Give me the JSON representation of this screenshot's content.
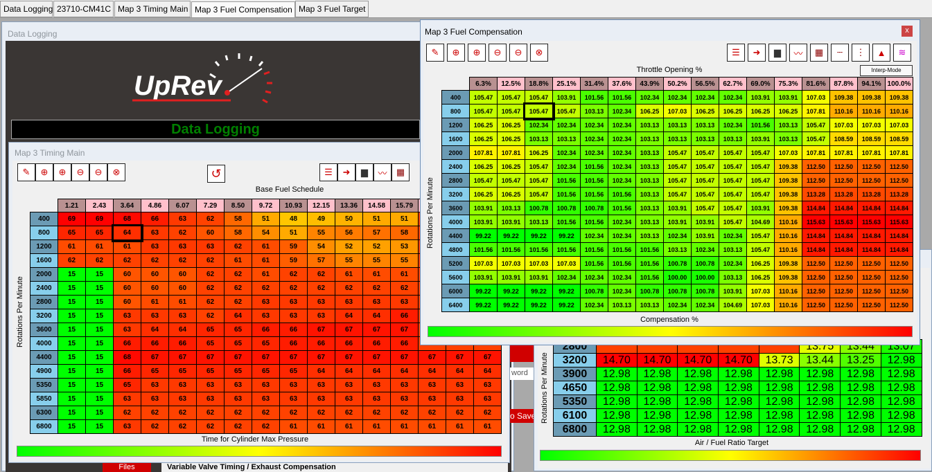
{
  "tabs": [
    "Data Logging",
    "23710-CM41C",
    "Map 3 Timing Main",
    "Map 3 Fuel Compensation",
    "Map 3 Fuel Target"
  ],
  "active_tab": "Map 3 Fuel Compensation",
  "data_logging": {
    "title": "Data Logging",
    "logo": "UpRev",
    "banner": "Data Logging",
    "password_fragment": "word",
    "save_fragment": "o Save",
    "files_fragment": "Files",
    "status_fragment": "Variable Valve Timing / Exhaust Compensation"
  },
  "colors": {
    "low": "#00ff00",
    "mid": "#ffff00",
    "high": "#ff0000",
    "header_a": "#b99191",
    "header_b": "#ffc0cb",
    "row_a": "#6b9bb4",
    "row_b": "#87ceeb",
    "banner_text": "#008000"
  },
  "timing": {
    "title": "Map 3 Timing Main",
    "col_axis": "Base Fuel Schedule",
    "row_axis": "Rotations Per Minute",
    "footer": "Time for Cylinder Max Pressure",
    "range": [
      15,
      69
    ],
    "cols": [
      "1.21",
      "2.43",
      "3.64",
      "4.86",
      "6.07",
      "7.29",
      "8.50",
      "9.72",
      "10.93",
      "12.15",
      "13.36",
      "14.58",
      "15.79",
      "",
      "",
      ""
    ],
    "rows": [
      "400",
      "800",
      "1200",
      "1600",
      "2000",
      "2400",
      "2800",
      "3200",
      "3600",
      "4000",
      "4400",
      "4900",
      "5350",
      "5850",
      "6300",
      "6800"
    ],
    "values": [
      [
        69,
        69,
        68,
        66,
        63,
        62,
        58,
        51,
        48,
        49,
        50,
        51,
        51,
        null,
        null,
        null
      ],
      [
        65,
        65,
        64,
        63,
        62,
        60,
        58,
        54,
        51,
        55,
        56,
        57,
        58,
        null,
        null,
        null
      ],
      [
        61,
        61,
        61,
        63,
        63,
        63,
        62,
        61,
        59,
        54,
        52,
        52,
        53,
        null,
        null,
        null
      ],
      [
        62,
        62,
        62,
        62,
        62,
        62,
        61,
        61,
        59,
        57,
        55,
        55,
        55,
        null,
        null,
        null
      ],
      [
        15,
        15,
        60,
        60,
        60,
        62,
        62,
        61,
        62,
        62,
        61,
        61,
        61,
        null,
        null,
        null
      ],
      [
        15,
        15,
        60,
        60,
        60,
        62,
        62,
        62,
        62,
        62,
        62,
        62,
        62,
        null,
        null,
        null
      ],
      [
        15,
        15,
        60,
        61,
        61,
        62,
        62,
        63,
        63,
        63,
        63,
        63,
        63,
        null,
        null,
        null
      ],
      [
        15,
        15,
        63,
        63,
        63,
        62,
        64,
        63,
        63,
        63,
        64,
        64,
        66,
        null,
        null,
        null
      ],
      [
        15,
        15,
        63,
        64,
        64,
        65,
        65,
        66,
        66,
        67,
        67,
        67,
        67,
        null,
        null,
        null
      ],
      [
        15,
        15,
        66,
        66,
        66,
        65,
        65,
        65,
        66,
        66,
        66,
        66,
        66,
        null,
        null,
        null
      ],
      [
        15,
        15,
        68,
        67,
        67,
        67,
        67,
        67,
        67,
        67,
        67,
        67,
        67,
        67,
        67,
        67
      ],
      [
        15,
        15,
        66,
        65,
        65,
        65,
        65,
        65,
        65,
        64,
        64,
        64,
        64,
        64,
        64,
        64
      ],
      [
        15,
        15,
        65,
        63,
        63,
        63,
        63,
        63,
        63,
        63,
        63,
        63,
        63,
        63,
        63,
        63
      ],
      [
        15,
        15,
        63,
        63,
        63,
        63,
        63,
        63,
        63,
        63,
        63,
        63,
        63,
        63,
        63,
        63
      ],
      [
        15,
        15,
        62,
        62,
        62,
        62,
        62,
        62,
        62,
        62,
        62,
        62,
        62,
        62,
        62,
        62
      ],
      [
        15,
        15,
        63,
        62,
        62,
        62,
        62,
        62,
        61,
        61,
        61,
        61,
        61,
        61,
        61,
        61
      ]
    ]
  },
  "fuel_comp": {
    "title": "Map 3 Fuel Compensation",
    "close": "x",
    "col_axis": "Throttle Opening %",
    "row_axis": "Rotations Per Minute",
    "footer": "Compensation %",
    "interp_mode": "Interp-Mode",
    "range": [
      99.22,
      115.63
    ],
    "cols": [
      "6.3%",
      "12.5%",
      "18.8%",
      "25.1%",
      "31.4%",
      "37.6%",
      "43.9%",
      "50.2%",
      "56.5%",
      "62.7%",
      "69.0%",
      "75.3%",
      "81.6%",
      "87.8%",
      "94.1%",
      "100.0%"
    ],
    "rows": [
      "400",
      "800",
      "1200",
      "1600",
      "2000",
      "2400",
      "2800",
      "3200",
      "3600",
      "4000",
      "4400",
      "4800",
      "5200",
      "5600",
      "6000",
      "6400"
    ],
    "values": [
      [
        "105.47",
        "105.47",
        "105.47",
        "103.91",
        "101.56",
        "101.56",
        "102.34",
        "102.34",
        "102.34",
        "102.34",
        "103.91",
        "103.91",
        "107.03",
        "109.38",
        "109.38",
        "109.38"
      ],
      [
        "105.47",
        "105.47",
        "105.47",
        "105.47",
        "103.13",
        "102.34",
        "106.25",
        "107.03",
        "106.25",
        "106.25",
        "106.25",
        "106.25",
        "107.81",
        "110.16",
        "110.16",
        "110.16"
      ],
      [
        "106.25",
        "106.25",
        "102.34",
        "102.34",
        "102.34",
        "102.34",
        "103.13",
        "103.13",
        "103.13",
        "102.34",
        "101.56",
        "103.13",
        "105.47",
        "107.03",
        "107.03",
        "107.03"
      ],
      [
        "106.25",
        "106.25",
        "103.13",
        "103.13",
        "102.34",
        "102.34",
        "103.13",
        "103.13",
        "103.13",
        "103.13",
        "103.91",
        "103.13",
        "105.47",
        "108.59",
        "108.59",
        "108.59"
      ],
      [
        "107.81",
        "107.81",
        "106.25",
        "102.34",
        "102.34",
        "102.34",
        "103.13",
        "105.47",
        "105.47",
        "105.47",
        "105.47",
        "107.03",
        "107.81",
        "107.81",
        "107.81",
        "107.81"
      ],
      [
        "106.25",
        "106.25",
        "105.47",
        "102.34",
        "101.56",
        "102.34",
        "103.13",
        "105.47",
        "105.47",
        "105.47",
        "105.47",
        "109.38",
        "112.50",
        "112.50",
        "112.50",
        "112.50"
      ],
      [
        "105.47",
        "105.47",
        "105.47",
        "101.56",
        "101.56",
        "102.34",
        "103.13",
        "105.47",
        "105.47",
        "105.47",
        "105.47",
        "109.38",
        "112.50",
        "112.50",
        "112.50",
        "112.50"
      ],
      [
        "106.25",
        "106.25",
        "105.47",
        "101.56",
        "101.56",
        "101.56",
        "103.13",
        "105.47",
        "105.47",
        "105.47",
        "105.47",
        "109.38",
        "113.28",
        "113.28",
        "113.28",
        "113.28"
      ],
      [
        "103.91",
        "103.13",
        "100.78",
        "100.78",
        "100.78",
        "101.56",
        "103.13",
        "103.91",
        "105.47",
        "105.47",
        "103.91",
        "109.38",
        "114.84",
        "114.84",
        "114.84",
        "114.84"
      ],
      [
        "103.91",
        "103.91",
        "103.13",
        "101.56",
        "101.56",
        "102.34",
        "103.13",
        "103.91",
        "103.91",
        "105.47",
        "104.69",
        "110.16",
        "115.63",
        "115.63",
        "115.63",
        "115.63"
      ],
      [
        "99.22",
        "99.22",
        "99.22",
        "99.22",
        "102.34",
        "102.34",
        "103.13",
        "102.34",
        "103.91",
        "102.34",
        "105.47",
        "110.16",
        "114.84",
        "114.84",
        "114.84",
        "114.84"
      ],
      [
        "101.56",
        "101.56",
        "101.56",
        "101.56",
        "101.56",
        "101.56",
        "101.56",
        "103.13",
        "102.34",
        "103.13",
        "105.47",
        "110.16",
        "114.84",
        "114.84",
        "114.84",
        "114.84"
      ],
      [
        "107.03",
        "107.03",
        "107.03",
        "107.03",
        "101.56",
        "101.56",
        "101.56",
        "100.78",
        "100.78",
        "102.34",
        "106.25",
        "109.38",
        "112.50",
        "112.50",
        "112.50",
        "112.50"
      ],
      [
        "103.91",
        "103.91",
        "103.91",
        "102.34",
        "102.34",
        "102.34",
        "101.56",
        "100.00",
        "100.00",
        "103.13",
        "106.25",
        "109.38",
        "112.50",
        "112.50",
        "112.50",
        "112.50"
      ],
      [
        "99.22",
        "99.22",
        "99.22",
        "99.22",
        "100.78",
        "102.34",
        "100.78",
        "100.78",
        "100.78",
        "103.91",
        "107.03",
        "110.16",
        "112.50",
        "112.50",
        "112.50",
        "112.50"
      ],
      [
        "99.22",
        "99.22",
        "99.22",
        "99.22",
        "102.34",
        "103.13",
        "103.13",
        "102.34",
        "102.34",
        "104.69",
        "107.03",
        "110.16",
        "112.50",
        "112.50",
        "112.50",
        "112.50"
      ]
    ]
  },
  "fuel_target": {
    "title": "Map 3 Fuel Target",
    "row_axis": "Rotations Per Minute",
    "footer": "Air / Fuel Ratio Target",
    "range": [
      12.98,
      14.7
    ],
    "rows": [
      "2800",
      "3200",
      "3900",
      "4650",
      "5350",
      "6100",
      "6800"
    ],
    "values": [
      [
        null,
        null,
        null,
        null,
        null,
        "13.75",
        "13.44",
        "13.07"
      ],
      [
        "14.70",
        "14.70",
        "14.70",
        "14.70",
        "13.73",
        "13.44",
        "13.25",
        "12.98"
      ],
      [
        "12.98",
        "12.98",
        "12.98",
        "12.98",
        "12.98",
        "12.98",
        "12.98",
        "12.98"
      ],
      [
        "12.98",
        "12.98",
        "12.98",
        "12.98",
        "12.98",
        "12.98",
        "12.98",
        "12.98"
      ],
      [
        "12.98",
        "12.98",
        "12.98",
        "12.98",
        "12.98",
        "12.98",
        "12.98",
        "12.98"
      ],
      [
        "12.98",
        "12.98",
        "12.98",
        "12.98",
        "12.98",
        "12.98",
        "12.98",
        "12.98"
      ],
      [
        "12.98",
        "12.98",
        "12.98",
        "12.98",
        "12.98",
        "12.98",
        "12.98",
        "12.98"
      ]
    ]
  }
}
